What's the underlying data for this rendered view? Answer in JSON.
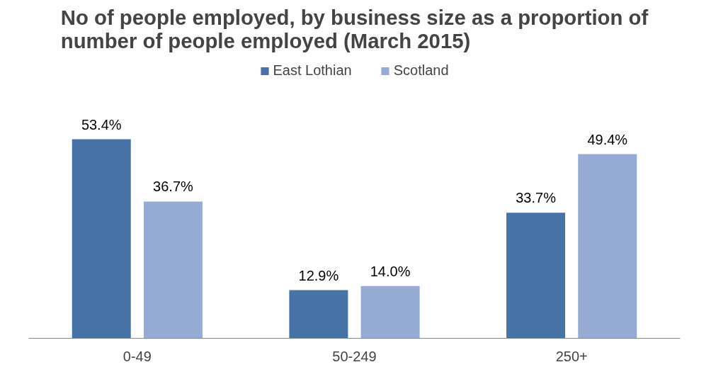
{
  "chart_data": {
    "type": "bar",
    "title": "No of people employed, by business size as a proportion of number of people employed (March 2015)",
    "categories": [
      "0-49",
      "50-249",
      "250+"
    ],
    "series": [
      {
        "name": "East Lothian",
        "color": "#4672a8",
        "values": [
          53.4,
          12.9,
          33.7
        ],
        "value_labels": [
          "53.4%",
          "12.9%",
          "33.7%"
        ]
      },
      {
        "name": "Scotland",
        "color": "#95abd3",
        "values": [
          36.7,
          14.0,
          49.4
        ],
        "value_labels": [
          "36.7%",
          "14.0%",
          "49.4%"
        ]
      }
    ],
    "legend": "top",
    "grid": false
  }
}
